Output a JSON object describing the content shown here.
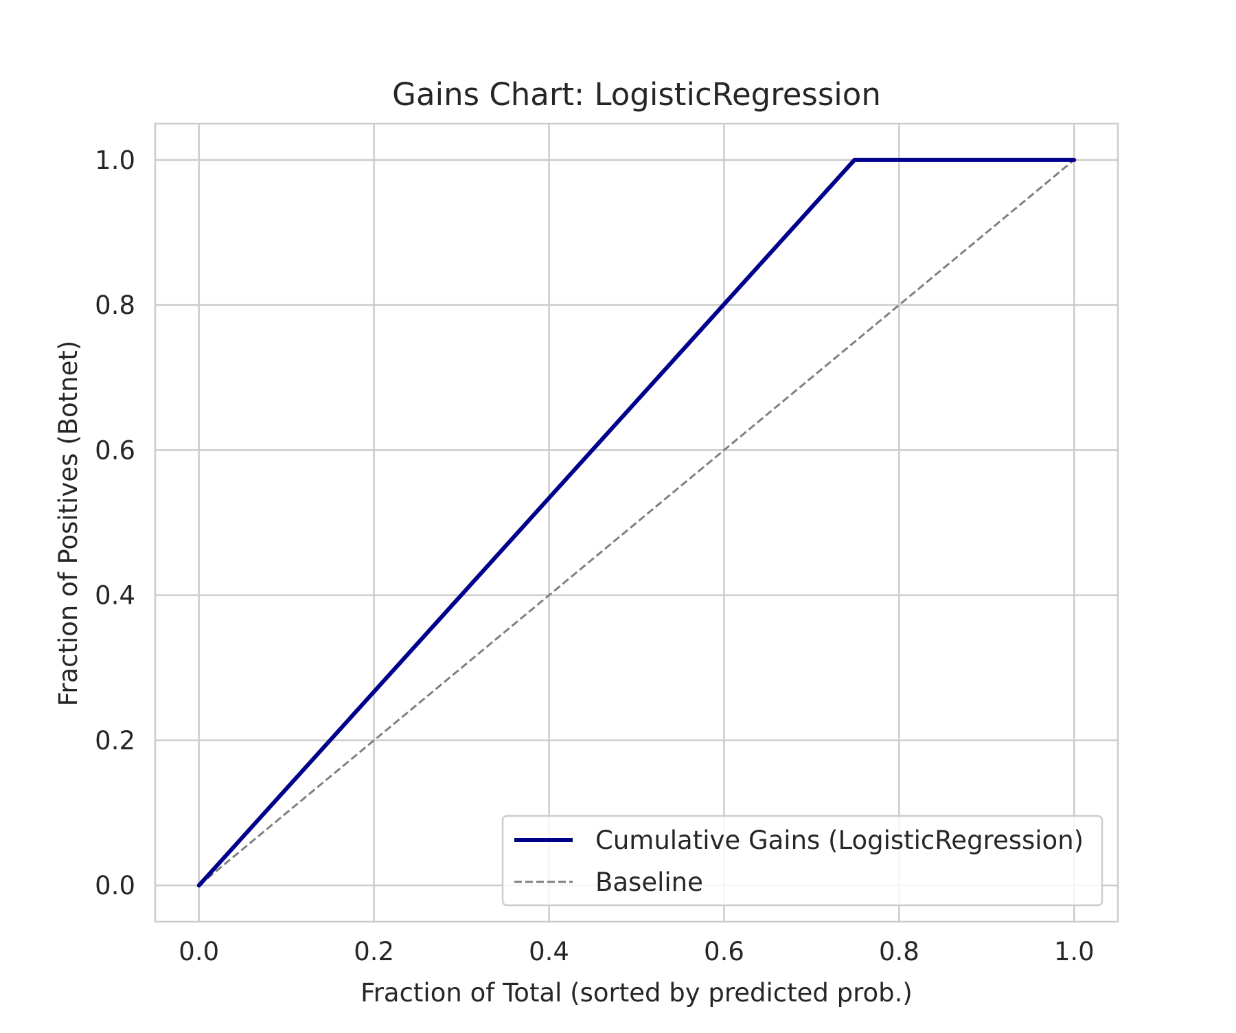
{
  "chart_data": {
    "type": "line",
    "title": "Gains Chart: LogisticRegression",
    "xlabel": "Fraction of Total (sorted by predicted prob.)",
    "ylabel": "Fraction of Positives (Botnet)",
    "xlim": [
      -0.05,
      1.05
    ],
    "ylim": [
      -0.05,
      1.05
    ],
    "xticks": [
      0.0,
      0.2,
      0.4,
      0.6,
      0.8,
      1.0
    ],
    "yticks": [
      0.0,
      0.2,
      0.4,
      0.6,
      0.8,
      1.0
    ],
    "xtick_labels": [
      "0.0",
      "0.2",
      "0.4",
      "0.6",
      "0.8",
      "1.0"
    ],
    "ytick_labels": [
      "0.0",
      "0.2",
      "0.4",
      "0.6",
      "0.8",
      "1.0"
    ],
    "grid": true,
    "legend": "lower-right",
    "series": [
      {
        "name": "Cumulative Gains (LogisticRegression)",
        "style": "solid",
        "color": "#00008b",
        "x": [
          0.0,
          0.749,
          0.77,
          1.0
        ],
        "y": [
          0.0,
          1.0,
          1.0,
          1.0
        ]
      },
      {
        "name": "Baseline",
        "style": "dashed",
        "color": "#808080",
        "x": [
          0.0,
          1.0
        ],
        "y": [
          0.0,
          1.0
        ]
      }
    ]
  }
}
